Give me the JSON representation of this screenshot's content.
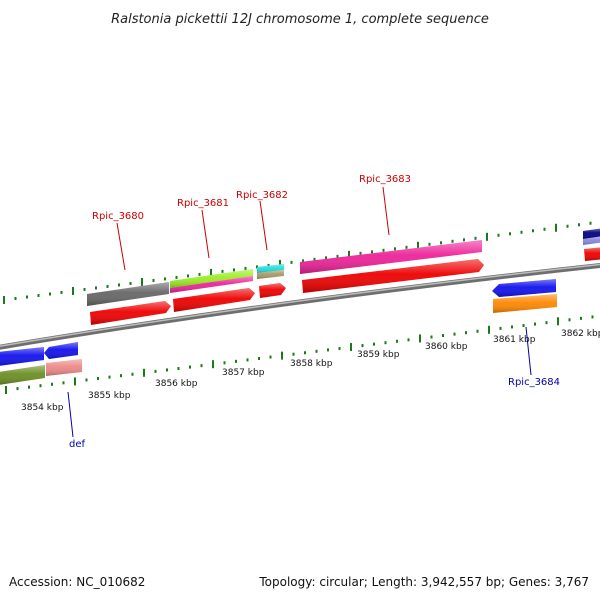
{
  "title": "Ralstonia pickettii 12J chromosome 1, complete sequence",
  "footer": {
    "accession": "Accession: NC_010682",
    "summary": "Topology: circular; Length: 3,942,557 bp; Genes: 3,767"
  },
  "ticks": [
    "3854 kbp",
    "3855 kbp",
    "3856 kbp",
    "3857 kbp",
    "3858 kbp",
    "3859 kbp",
    "3860 kbp",
    "3861 kbp",
    "3862 kbp"
  ],
  "gene_labels": {
    "rpic_3680": "Rpic_3680",
    "rpic_3681": "Rpic_3681",
    "rpic_3682": "Rpic_3682",
    "rpic_3683": "Rpic_3683",
    "rpic_3684": "Rpic_3684",
    "def": "def"
  },
  "colors": {
    "backbone": "#8a8a8a",
    "tick_green": "#1a7a1a",
    "cds_red": "#ee0000",
    "gray_feature": "#666666",
    "lime_feature": "#99ee22",
    "magenta_feature": "#ee2299",
    "cyan_feature": "#22dddd",
    "khaki_feature": "#a89a66",
    "blue_feature": "#1111ee",
    "orange_feature": "#ff8800",
    "olive_feature": "#6b8e23",
    "pink_feature": "#ee8888",
    "navy_feature": "#000080",
    "lavender_feature": "#8888dd"
  }
}
